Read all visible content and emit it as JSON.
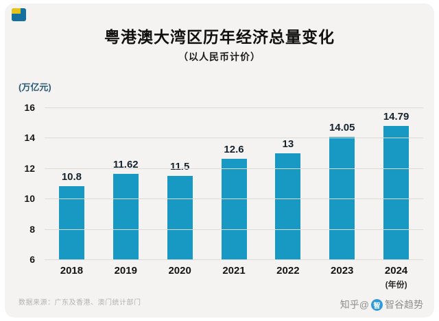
{
  "page": {
    "logo_colors": {
      "blue": "#14719f",
      "yellow": "#e6c319"
    }
  },
  "chart_data": {
    "type": "bar",
    "title": "粤港澳大湾区历年经济总量变化",
    "subtitle": "（以人民币计价）",
    "unit_label": "(万亿元)",
    "categories": [
      "2018",
      "2019",
      "2020",
      "2021",
      "2022",
      "2023",
      "2024"
    ],
    "values": [
      10.8,
      11.62,
      11.5,
      12.6,
      13,
      14.05,
      14.79
    ],
    "value_labels": [
      "10.8",
      "11.62",
      "11.5",
      "12.6",
      "13",
      "14.05",
      "14.79"
    ],
    "x_axis_suffix": "(年份)",
    "y_ticks": [
      16,
      14,
      12,
      10,
      8,
      6
    ],
    "ylim": [
      6,
      16
    ],
    "bar_color": "#1899c4",
    "grid": true,
    "legend": "none"
  },
  "footer": {
    "source": "数据来源：广东及香港、澳门统计部门",
    "watermark_left": "知乎@",
    "watermark_right": "智谷趋势",
    "watermark_icon_glyph": "智"
  }
}
